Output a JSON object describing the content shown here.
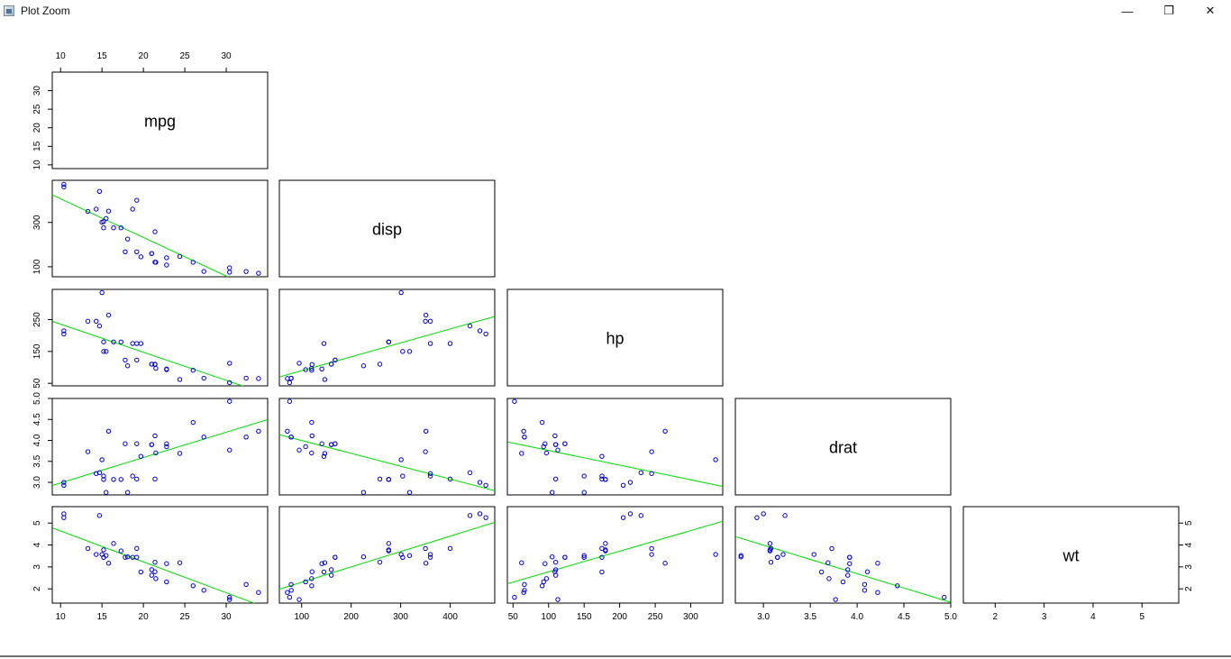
{
  "window": {
    "title": "Plot Zoom",
    "minimize_icon": "minimize-icon",
    "maximize_icon": "restore-icon",
    "close_icon": "close-icon",
    "minimize_glyph": "—",
    "restore_glyph": "❐",
    "close_glyph": "✕"
  },
  "chart_data": {
    "type": "scatter",
    "variables": [
      {
        "name": "mpg",
        "range": [
          9,
          35
        ],
        "ticks": [
          10,
          15,
          20,
          25,
          30
        ],
        "tick_labels": [
          "10",
          "15",
          "20",
          "25",
          "30"
        ]
      },
      {
        "name": "disp",
        "range": [
          55,
          490
        ],
        "ticks": [
          100,
          200,
          300,
          400
        ],
        "tick_labels": [
          "100",
          "200",
          "300",
          "400"
        ]
      },
      {
        "name": "hp",
        "range": [
          42,
          345
        ],
        "ticks": [
          50,
          100,
          150,
          200,
          250,
          300
        ],
        "tick_labels": [
          "50",
          "100",
          "150",
          "200",
          "250",
          "300"
        ]
      },
      {
        "name": "drat",
        "range": [
          2.7,
          5.0
        ],
        "ticks": [
          3.0,
          3.5,
          4.0,
          4.5,
          5.0
        ],
        "tick_labels": [
          "3.0",
          "3.5",
          "4.0",
          "4.5",
          "5.0"
        ]
      },
      {
        "name": "wt",
        "range": [
          1.35,
          5.75
        ],
        "ticks": [
          2,
          3,
          4,
          5
        ],
        "tick_labels": [
          "2",
          "3",
          "4",
          "5"
        ]
      }
    ],
    "left_axis_ticks": [
      {
        "row": 0,
        "ticks": [
          10,
          15,
          20,
          25,
          30
        ],
        "tick_labels": [
          "10",
          "15",
          "20",
          "25",
          "30"
        ]
      },
      {
        "row": 1,
        "ticks": [
          100,
          300
        ],
        "tick_labels": [
          "100",
          "300"
        ]
      },
      {
        "row": 2,
        "ticks": [
          50,
          150,
          250
        ],
        "tick_labels": [
          "50",
          "150",
          "250"
        ]
      },
      {
        "row": 3,
        "ticks": [
          3.0,
          3.5,
          4.0,
          4.5,
          5.0
        ],
        "tick_labels": [
          "3.0",
          "3.5",
          "4.0",
          "4.5",
          "5.0"
        ]
      },
      {
        "row": 4,
        "ticks": [
          2,
          3,
          4,
          5
        ],
        "tick_labels": [
          "2",
          "3",
          "4",
          "5"
        ]
      }
    ],
    "bottom_axis_ticks": [
      {
        "col": 0,
        "ticks": [
          10,
          15,
          20,
          25,
          30
        ],
        "tick_labels": [
          "10",
          "15",
          "20",
          "25",
          "30"
        ]
      },
      {
        "col": 1,
        "ticks": [
          100,
          200,
          300,
          400
        ],
        "tick_labels": [
          "100",
          "200",
          "300",
          "400"
        ]
      },
      {
        "col": 2,
        "ticks": [
          50,
          100,
          150,
          200,
          250,
          300
        ],
        "tick_labels": [
          "50",
          "100",
          "150",
          "200",
          "250",
          "300"
        ]
      },
      {
        "col": 3,
        "ticks": [
          3.0,
          3.5,
          4.0,
          4.5,
          5.0
        ],
        "tick_labels": [
          "3.0",
          "3.5",
          "4.0",
          "4.5",
          "5.0"
        ]
      },
      {
        "col": 4,
        "ticks": [
          2,
          3,
          4,
          5
        ],
        "tick_labels": [
          "2",
          "3",
          "4",
          "5"
        ]
      }
    ],
    "top_axis_ticks": {
      "col": 0,
      "ticks": [
        10,
        15,
        20,
        25,
        30
      ],
      "tick_labels": [
        "10",
        "15",
        "20",
        "25",
        "30"
      ]
    },
    "right_axis_ticks": {
      "row": 4,
      "ticks": [
        2,
        3,
        4,
        5
      ],
      "tick_labels": [
        "2",
        "3",
        "4",
        "5"
      ]
    },
    "layout": "lower-triangle",
    "point_color": "#0000cc",
    "line_color": "#00dd00",
    "records": [
      [
        21.0,
        160.0,
        110,
        3.9,
        2.62
      ],
      [
        21.0,
        160.0,
        110,
        3.9,
        2.875
      ],
      [
        22.8,
        108.0,
        93,
        3.85,
        2.32
      ],
      [
        21.4,
        258.0,
        110,
        3.08,
        3.215
      ],
      [
        18.7,
        360.0,
        175,
        3.15,
        3.44
      ],
      [
        18.1,
        225.0,
        105,
        2.76,
        3.46
      ],
      [
        14.3,
        360.0,
        245,
        3.21,
        3.57
      ],
      [
        24.4,
        146.7,
        62,
        3.69,
        3.19
      ],
      [
        22.8,
        140.8,
        95,
        3.92,
        3.15
      ],
      [
        19.2,
        167.6,
        123,
        3.92,
        3.44
      ],
      [
        17.8,
        167.6,
        123,
        3.92,
        3.44
      ],
      [
        16.4,
        275.8,
        180,
        3.07,
        4.07
      ],
      [
        17.3,
        275.8,
        180,
        3.07,
        3.73
      ],
      [
        15.2,
        275.8,
        180,
        3.07,
        3.78
      ],
      [
        10.4,
        472.0,
        205,
        2.93,
        5.25
      ],
      [
        10.4,
        460.0,
        215,
        3.0,
        5.424
      ],
      [
        14.7,
        440.0,
        230,
        3.23,
        5.345
      ],
      [
        32.4,
        78.7,
        66,
        4.08,
        2.2
      ],
      [
        30.4,
        75.7,
        52,
        4.93,
        1.615
      ],
      [
        33.9,
        71.1,
        65,
        4.22,
        1.835
      ],
      [
        21.5,
        120.1,
        97,
        3.7,
        2.465
      ],
      [
        15.5,
        318.0,
        150,
        2.76,
        3.52
      ],
      [
        15.2,
        304.0,
        150,
        3.15,
        3.435
      ],
      [
        13.3,
        350.0,
        245,
        3.73,
        3.84
      ],
      [
        19.2,
        400.0,
        175,
        3.08,
        3.845
      ],
      [
        27.3,
        79.0,
        66,
        4.08,
        1.935
      ],
      [
        26.0,
        120.3,
        91,
        4.43,
        2.14
      ],
      [
        30.4,
        95.1,
        113,
        3.77,
        1.513
      ],
      [
        15.8,
        351.0,
        264,
        4.22,
        3.17
      ],
      [
        19.7,
        145.0,
        175,
        3.62,
        2.77
      ],
      [
        15.0,
        301.0,
        335,
        3.54,
        3.57
      ],
      [
        21.4,
        121.0,
        109,
        4.11,
        2.78
      ]
    ]
  }
}
